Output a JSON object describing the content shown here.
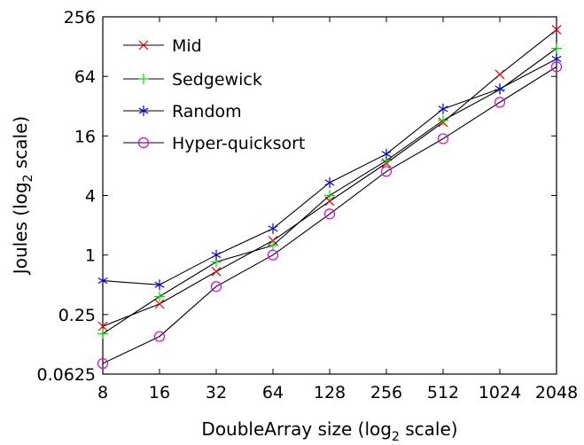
{
  "chart_data": {
    "type": "line",
    "xlabel": "DoubleArray size (log",
    "xlabel_sub": "2",
    "xlabel_suffix": " scale)",
    "ylabel": "Joules (log",
    "ylabel_sub": "2",
    "ylabel_suffix": " scale)",
    "x_scale": "log2",
    "y_scale": "log2",
    "xlim": [
      8,
      2048
    ],
    "ylim": [
      0.0625,
      256
    ],
    "x_ticks": [
      8,
      16,
      32,
      64,
      128,
      256,
      512,
      1024,
      2048
    ],
    "x_tick_labels": [
      "8",
      "16",
      "32",
      "64",
      "128",
      "256",
      "512",
      "1024",
      "2048"
    ],
    "y_ticks": [
      0.0625,
      0.25,
      1,
      4,
      16,
      64,
      256
    ],
    "y_tick_labels": [
      "0.0625",
      "0.25",
      "1",
      "4",
      "16",
      "64",
      "256"
    ],
    "grid": false,
    "legend_position": "top-left",
    "series": [
      {
        "name": "Mid",
        "marker": "x",
        "color": "#e00000",
        "x": [
          8,
          16,
          32,
          64,
          128,
          256,
          512,
          1024,
          2048
        ],
        "values": [
          0.19,
          0.32,
          0.68,
          1.4,
          3.5,
          8.5,
          22,
          67,
          190
        ]
      },
      {
        "name": "Sedgewick",
        "marker": "+",
        "color": "#00e000",
        "x": [
          8,
          16,
          32,
          64,
          128,
          256,
          512,
          1024,
          2048
        ],
        "values": [
          0.16,
          0.38,
          0.85,
          1.25,
          4.0,
          9.0,
          23,
          47,
          123
        ]
      },
      {
        "name": "Random",
        "marker": "*",
        "color": "#0000e0",
        "x": [
          8,
          16,
          32,
          64,
          128,
          256,
          512,
          1024,
          2048
        ],
        "values": [
          0.55,
          0.5,
          1.0,
          1.85,
          5.4,
          10.5,
          30,
          48,
          96
        ]
      },
      {
        "name": "Hyper-quicksort",
        "marker": "o",
        "color": "#e000e0",
        "x": [
          8,
          16,
          32,
          64,
          128,
          256,
          512,
          1024,
          2048
        ],
        "values": [
          0.08,
          0.15,
          0.48,
          1.0,
          2.6,
          7.0,
          15,
          35,
          80
        ]
      }
    ]
  }
}
